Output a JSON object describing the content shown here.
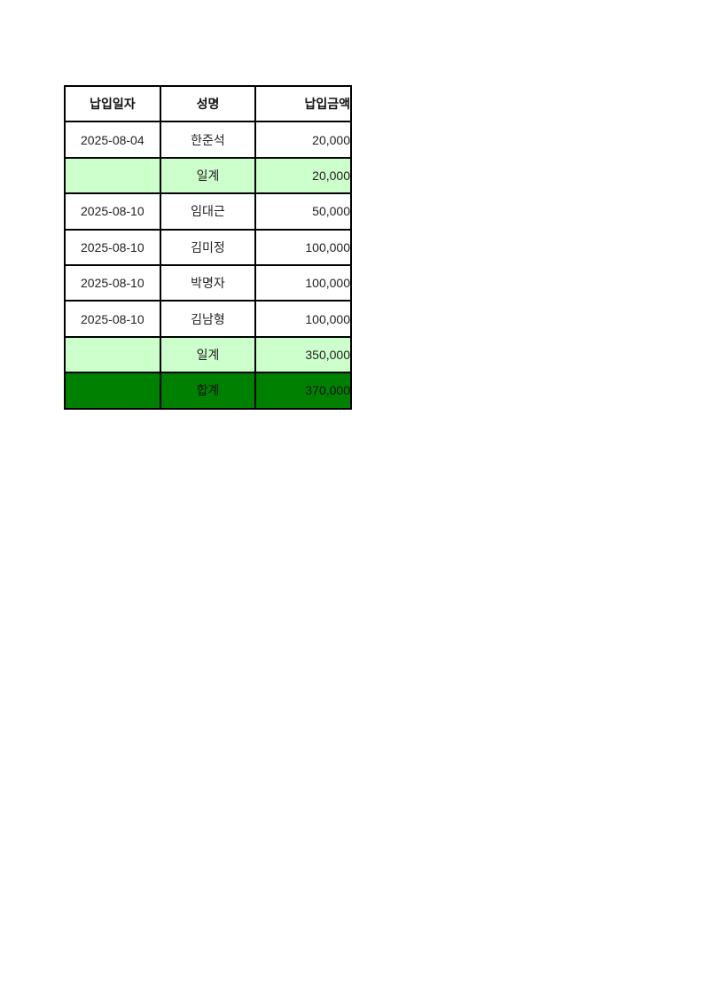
{
  "page": {
    "background": "#ffffff"
  },
  "table": {
    "columns": [
      {
        "label": "납입일자",
        "align": "center"
      },
      {
        "label": "성명",
        "align": "center"
      },
      {
        "label": "납입금액",
        "align": "right"
      }
    ],
    "rows": [
      {
        "type": "data",
        "date": "2025-08-04",
        "name": "한준석",
        "amount": "20,000"
      },
      {
        "type": "subtotal",
        "date": "",
        "name": "일계",
        "amount": "20,000"
      },
      {
        "type": "data",
        "date": "2025-08-10",
        "name": "임대근",
        "amount": "50,000"
      },
      {
        "type": "data",
        "date": "2025-08-10",
        "name": "김미정",
        "amount": "100,000"
      },
      {
        "type": "data",
        "date": "2025-08-10",
        "name": "박명자",
        "amount": "100,000"
      },
      {
        "type": "data",
        "date": "2025-08-10",
        "name": "김남형",
        "amount": "100,000"
      },
      {
        "type": "subtotal",
        "date": "",
        "name": "일계",
        "amount": "350,000"
      },
      {
        "type": "total",
        "date": "",
        "name": "합계",
        "amount": "370,000"
      }
    ],
    "colors": {
      "subtotal_bg": "#ccffcc",
      "total_bg": "#008000",
      "border": "#000000",
      "text": "#222222"
    }
  }
}
